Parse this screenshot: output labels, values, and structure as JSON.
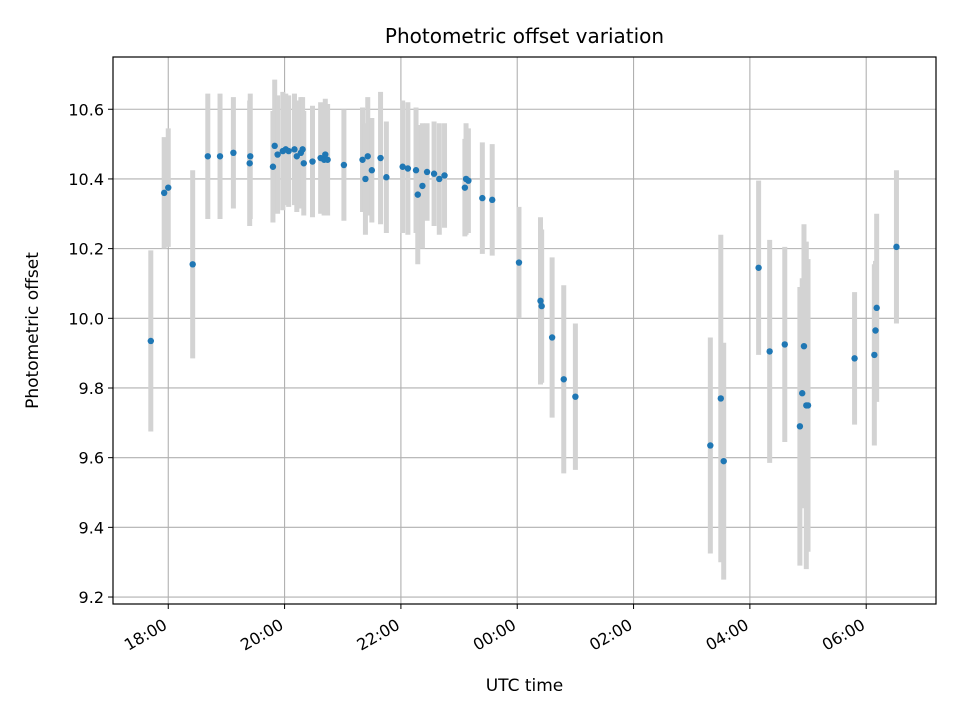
{
  "chart_data": {
    "type": "scatter",
    "title": "Photometric offset variation",
    "xlabel": "UTC time",
    "ylabel": "Photometric offset",
    "x_ticks": [
      "18:00",
      "20:00",
      "22:00",
      "00:00",
      "02:00",
      "04:00",
      "06:00"
    ],
    "y_ticks": [
      "9.2",
      "9.4",
      "9.6",
      "9.8",
      "10.0",
      "10.2",
      "10.4",
      "10.6"
    ],
    "xlim_hours": [
      17.05,
      31.2
    ],
    "ylim": [
      9.18,
      10.75
    ],
    "grid": true,
    "point_color": "#1f77b4",
    "errorbar_color": "#d3d3d3",
    "x_unit": "hours since 00:00 UTC of first night (values > 24 fall on the following day)",
    "series": [
      {
        "x": [
          17.7,
          17.93,
          18.0,
          18.42,
          18.68,
          18.89,
          19.12,
          19.4,
          19.41,
          19.8,
          19.83,
          19.88,
          19.97,
          20.02,
          20.07,
          20.17,
          20.21,
          20.28,
          20.31,
          20.33,
          20.48,
          20.62,
          20.68,
          20.7,
          20.74,
          21.02,
          21.34,
          21.39,
          21.43,
          21.5,
          21.65,
          21.75,
          22.03,
          22.12,
          22.26,
          22.29,
          22.37,
          22.45,
          22.57,
          22.66,
          22.75,
          23.1,
          23.12,
          23.16,
          23.4,
          23.57,
          24.03,
          24.4,
          24.42,
          24.6,
          24.8,
          25.0,
          27.32,
          27.5,
          27.55,
          28.15,
          28.34,
          28.6,
          28.86,
          28.9,
          28.93,
          28.97,
          29.0,
          29.8,
          30.14,
          30.16,
          30.18,
          30.52
        ],
        "y": [
          9.935,
          10.36,
          10.375,
          10.155,
          10.465,
          10.465,
          10.475,
          10.445,
          10.465,
          10.435,
          10.495,
          10.47,
          10.48,
          10.485,
          10.48,
          10.485,
          10.465,
          10.475,
          10.485,
          10.445,
          10.45,
          10.46,
          10.455,
          10.47,
          10.455,
          10.44,
          10.455,
          10.4,
          10.465,
          10.425,
          10.46,
          10.405,
          10.435,
          10.43,
          10.425,
          10.355,
          10.38,
          10.42,
          10.415,
          10.4,
          10.41,
          10.375,
          10.4,
          10.395,
          10.345,
          10.34,
          10.16,
          10.05,
          10.035,
          9.945,
          9.825,
          9.775,
          9.635,
          9.77,
          9.59,
          10.145,
          9.905,
          9.925,
          9.69,
          9.785,
          9.92,
          9.75,
          9.75,
          9.885,
          9.895,
          9.965,
          10.03,
          10.205
        ],
        "err": [
          0.26,
          0.16,
          0.17,
          0.27,
          0.18,
          0.18,
          0.16,
          0.18,
          0.18,
          0.16,
          0.19,
          0.17,
          0.17,
          0.16,
          0.16,
          0.16,
          0.16,
          0.16,
          0.15,
          0.15,
          0.16,
          0.16,
          0.16,
          0.16,
          0.16,
          0.16,
          0.15,
          0.16,
          0.17,
          0.15,
          0.19,
          0.16,
          0.19,
          0.19,
          0.18,
          0.2,
          0.18,
          0.14,
          0.15,
          0.16,
          0.15,
          0.14,
          0.16,
          0.15,
          0.16,
          0.16,
          0.16,
          0.24,
          0.22,
          0.23,
          0.27,
          0.21,
          0.31,
          0.47,
          0.34,
          0.25,
          0.32,
          0.28,
          0.4,
          0.33,
          0.35,
          0.47,
          0.42,
          0.19,
          0.26,
          0.2,
          0.27,
          0.22
        ]
      }
    ]
  }
}
